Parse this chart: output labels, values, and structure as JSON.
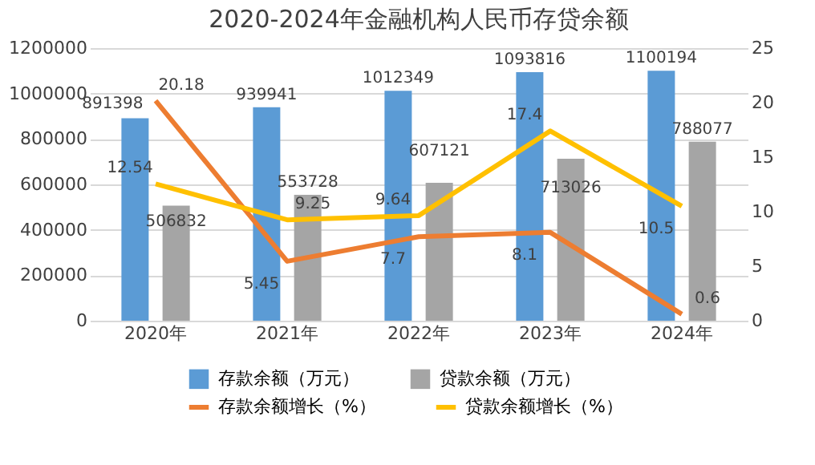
{
  "chart_data": {
    "type": "bar",
    "title": "2020-2024年金融机构人民币存贷余额",
    "categories": [
      "2020年",
      "2021年",
      "2022年",
      "2023年",
      "2024年"
    ],
    "series": [
      {
        "name": "存款余额（万元）",
        "color": "#5b9bd5",
        "values": [
          891398,
          939941,
          1012349,
          1093816,
          1100194
        ]
      },
      {
        "name": "贷款余额（万元）",
        "color": "#a5a5a5",
        "values": [
          506832,
          553728,
          607121,
          713026,
          788077
        ]
      },
      {
        "name": "存款余额增长（%）",
        "type": "line",
        "axis": "y2",
        "color": "#ed7d31",
        "values": [
          20.18,
          5.45,
          7.7,
          8.1,
          0.6
        ]
      },
      {
        "name": "贷款余额增长（%）",
        "type": "line",
        "axis": "y2",
        "color": "#ffc000",
        "values": [
          12.54,
          9.25,
          9.64,
          17.4,
          10.5
        ]
      }
    ],
    "ylim": [
      0,
      1200000
    ],
    "yticks": [
      0,
      200000,
      400000,
      600000,
      800000,
      1000000,
      1200000
    ],
    "y2lim": [
      0,
      25
    ],
    "y2ticks": [
      0,
      5,
      10,
      15,
      20,
      25
    ],
    "grid": "y",
    "legend": "bottom",
    "data_labels": true,
    "marker": "none",
    "line_style": "solid"
  }
}
